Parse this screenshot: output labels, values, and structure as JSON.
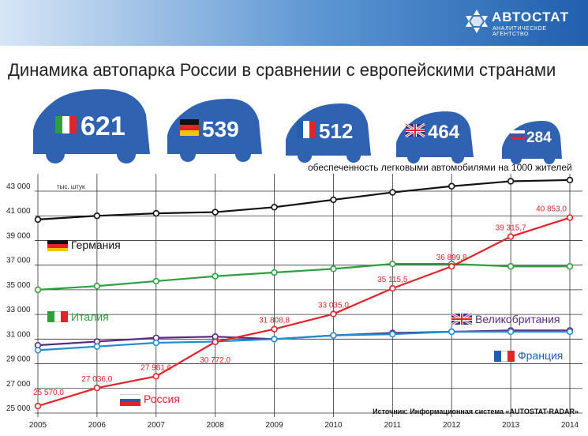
{
  "brand": {
    "name": "АВТОСТАТ",
    "subtitle": "АНАЛИТИЧЕСКОЕ АГЕНТСТВО"
  },
  "title": "Динамика автопарка России в сравнении с европейскими странами",
  "cars_per_1000": [
    {
      "country": "Italy",
      "value": "621"
    },
    {
      "country": "Germany",
      "value": "539"
    },
    {
      "country": "France",
      "value": "512"
    },
    {
      "country": "UK",
      "value": "464"
    },
    {
      "country": "Russia",
      "value": "284"
    }
  ],
  "subtitle": "обеспеченность легковыми автомобилями на 1000 жителей",
  "unit_label": "тыс. штук",
  "source": "Источник: Информационная система «AUTOSTAT-RADAR»",
  "colors": {
    "germany": "#111111",
    "italy": "#2e9e3e",
    "uk": "#5a2a82",
    "france": "#1f8ed0",
    "russia": "#e0242a",
    "car": "#2f62b0",
    "grid": "#333333"
  },
  "chart_data": {
    "type": "line",
    "x": [
      2005,
      2006,
      2007,
      2008,
      2009,
      2010,
      2011,
      2012,
      2013,
      2014
    ],
    "ylim": [
      25000,
      43000
    ],
    "yticks": [
      "25 000",
      "27 000",
      "29 000",
      "31 000",
      "33 000",
      "35 000",
      "37 000",
      "39 000",
      "41 000",
      "43 000"
    ],
    "grid": true,
    "series": [
      {
        "name": "Германия",
        "key": "germany",
        "values": [
          40700,
          41000,
          41200,
          41300,
          41700,
          42300,
          42900,
          43400,
          43800,
          43900
        ]
      },
      {
        "name": "Италия",
        "key": "italy",
        "values": [
          35000,
          35300,
          35700,
          36100,
          36400,
          36700,
          37100,
          37100,
          36900,
          36900
        ]
      },
      {
        "name": "Великобритания",
        "key": "uk",
        "values": [
          30500,
          30800,
          31100,
          31200,
          31000,
          31300,
          31500,
          31600,
          31700,
          31700
        ]
      },
      {
        "name": "Франция",
        "key": "france",
        "values": [
          30100,
          30400,
          30700,
          30800,
          31000,
          31300,
          31400,
          31600,
          31600,
          31600
        ]
      },
      {
        "name": "Россия",
        "key": "russia",
        "values": [
          25570.0,
          27036.0,
          27981.6,
          30772.0,
          31808.8,
          33035.0,
          35115.5,
          36899.8,
          39315.7,
          40853.0
        ],
        "labels": [
          "25 570,0",
          "27 036,0",
          "27 981,6",
          "30 772,0",
          "31 808,8",
          "33 035,0",
          "35 115,5",
          "36 899,8",
          "39 315,7",
          "40 853,0"
        ]
      }
    ]
  }
}
